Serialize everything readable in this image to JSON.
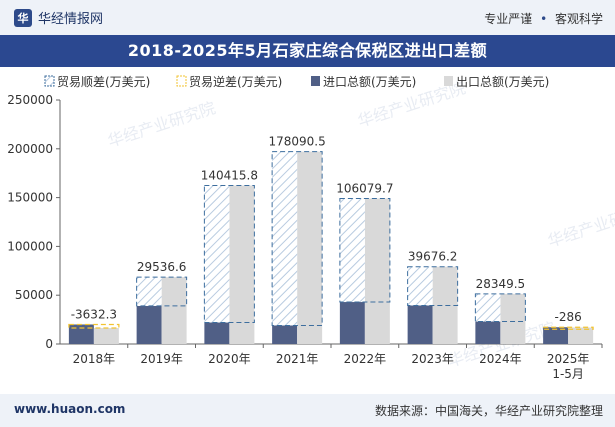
{
  "header": {
    "brand": "华经情报网",
    "slogan_left": "专业严谨",
    "slogan_right": "客观科学"
  },
  "title": "2018-2025年5月石家庄综合保税区进出口差额",
  "footer": {
    "site": "www.huaon.com",
    "source": "数据来源：中国海关，华经产业研究院整理"
  },
  "watermark": "华经产业研究院",
  "colors": {
    "import": "#505f86",
    "export": "#d9d9d9",
    "surplus": "#3d6e9e",
    "deficit": "#f2c330",
    "axis": "#666666"
  },
  "chart_data": {
    "type": "bar",
    "categories": [
      "2018年",
      "2019年",
      "2020年",
      "2021年",
      "2022年",
      "2023年",
      "2024年",
      "2025年\n1-5月"
    ],
    "series": [
      {
        "name": "进口总额(万美元)",
        "values": [
          20000,
          39000,
          22000,
          19000,
          43000,
          39500,
          23000,
          17200
        ]
      },
      {
        "name": "出口总额(万美元)",
        "values": [
          16368,
          68536.6,
          162415.8,
          197090.5,
          149079.7,
          79176.2,
          51349.5,
          16914
        ]
      }
    ],
    "balance": [
      -3632.3,
      29536.6,
      140415.8,
      178090.5,
      106079.7,
      39676.2,
      28349.5,
      -286
    ],
    "balance_labels": [
      "-3632.3",
      "29536.6",
      "140415.8",
      "178090.5",
      "106079.7",
      "39676.2",
      "28349.5",
      "-286"
    ],
    "legend": [
      {
        "label": "贸易顺差(万美元)",
        "kind": "surplus"
      },
      {
        "label": "贸易逆差(万美元)",
        "kind": "deficit"
      },
      {
        "label": "进口总额(万美元)",
        "kind": "import"
      },
      {
        "label": "出口总额(万美元)",
        "kind": "export"
      }
    ],
    "ylim": [
      0,
      250000
    ],
    "yticks": [
      0,
      50000,
      100000,
      150000,
      200000,
      250000
    ],
    "legend_position": "top",
    "grid": false
  }
}
